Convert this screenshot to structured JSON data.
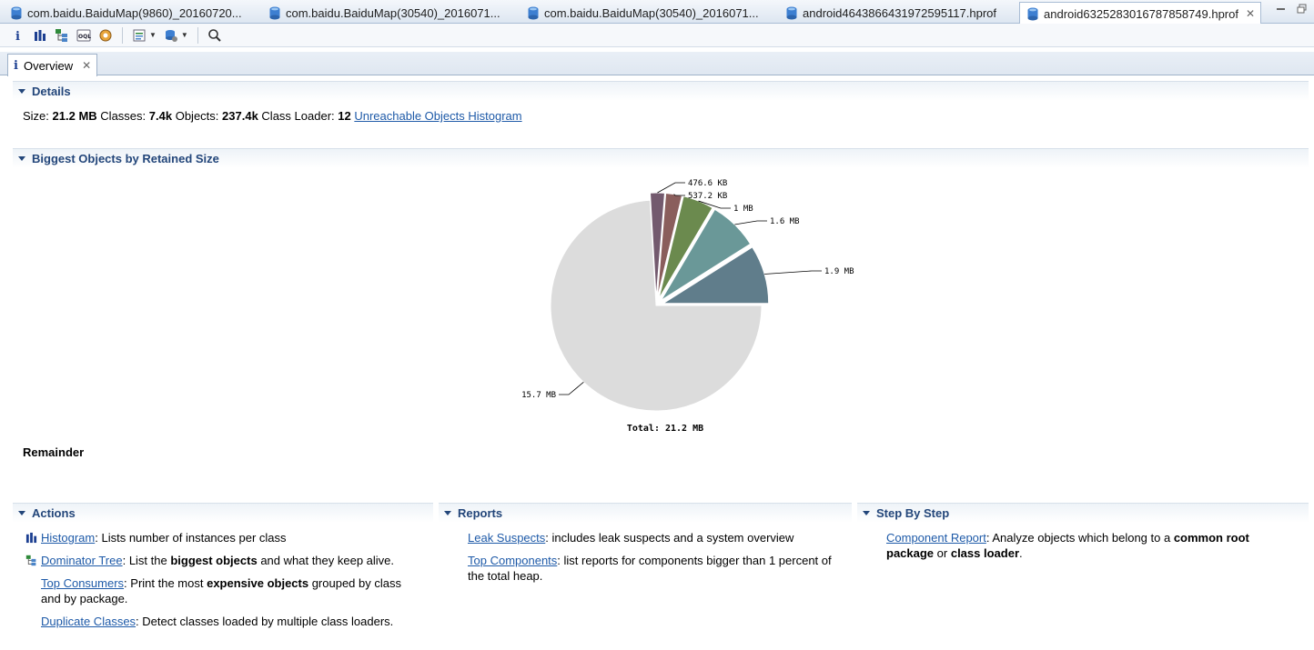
{
  "editor_tabs": [
    {
      "label": "com.baidu.BaiduMap(9860)_20160720...",
      "active": false
    },
    {
      "label": "com.baidu.BaiduMap(30540)_2016071...",
      "active": false
    },
    {
      "label": "com.baidu.BaiduMap(30540)_2016071...",
      "active": false
    },
    {
      "label": "android4643866431972595117.hprof",
      "active": false
    },
    {
      "label": "android6325283016787858749.hprof",
      "active": true
    }
  ],
  "close_glyph": "✕",
  "toolbar": {
    "icons": [
      "info-icon",
      "histogram-icon",
      "dominator-tree-icon",
      "oql-icon",
      "heap-dump-details-icon",
      "query-browser-icon",
      "find-leaks-icon",
      "search-icon"
    ]
  },
  "view_tab": {
    "label": "Overview"
  },
  "details": {
    "title": "Details",
    "size_label": "Size:",
    "size_value": "21.2 MB",
    "classes_label": "Classes:",
    "classes_value": "7.4k",
    "objects_label": "Objects:",
    "objects_value": "237.4k",
    "loader_label": "Class Loader:",
    "loader_value": "12",
    "unreachable_link": "Unreachable Objects Histogram"
  },
  "biggest": {
    "title": "Biggest Objects by Retained Size",
    "remainder_label": "Remainder"
  },
  "chart_data": {
    "type": "pie",
    "unit": "MB",
    "total_label": "Total: 21.2 MB",
    "slices": [
      {
        "label": "1.9 MB",
        "value": 1.9,
        "color": "#607d8b",
        "exploded": true
      },
      {
        "label": "1.6 MB",
        "value": 1.6,
        "color": "#6a9898",
        "exploded": true
      },
      {
        "label": "1 MB",
        "value": 1.0,
        "color": "#6b8a4e",
        "exploded": true
      },
      {
        "label": "537.2 KB",
        "value": 0.5246,
        "color": "#8a5e5c",
        "exploded": true
      },
      {
        "label": "476.6 KB",
        "value": 0.4654,
        "color": "#735a6e",
        "exploded": true
      },
      {
        "label": "15.7 MB",
        "value": 15.7,
        "color": "#dcdcdc",
        "exploded": false
      }
    ]
  },
  "actions": {
    "title": "Actions",
    "items": [
      {
        "link": "Histogram",
        "pre": ": Lists number of instances per class",
        "bold": "",
        "post": ""
      },
      {
        "link": "Dominator Tree",
        "pre": ": List the ",
        "bold": "biggest objects",
        "post": " and what they keep alive."
      },
      {
        "link": "Top Consumers",
        "pre": ": Print the most ",
        "bold": "expensive objects",
        "post": " grouped by class and by package."
      },
      {
        "link": "Duplicate Classes",
        "pre": ": Detect classes loaded by multiple class loaders.",
        "bold": "",
        "post": ""
      }
    ]
  },
  "reports": {
    "title": "Reports",
    "items": [
      {
        "link": "Leak Suspects",
        "text": ": includes leak suspects and a system overview"
      },
      {
        "link": "Top Components",
        "text": ": list reports for components bigger than 1 percent of the total heap."
      }
    ]
  },
  "step": {
    "title": "Step By Step",
    "link": "Component Report",
    "pre": ": Analyze objects which belong to a ",
    "bold1": "common root package",
    "mid": " or ",
    "bold2": "class loader",
    "post": "."
  }
}
